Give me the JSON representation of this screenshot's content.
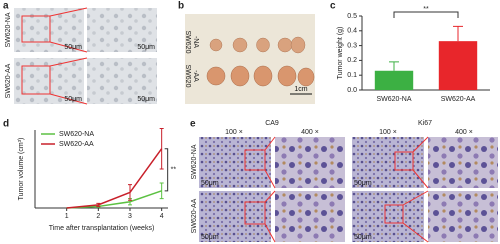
{
  "panels": {
    "a": {
      "label": "a",
      "rows": [
        "SW620-NA",
        "SW620-AA"
      ],
      "scales": [
        "50μm",
        "50μm",
        "50μm",
        "50μm"
      ]
    },
    "b": {
      "label": "b",
      "rows": [
        [
          "SW620",
          "-NA"
        ],
        [
          "SW620",
          "-AA"
        ]
      ],
      "scale": "1cm"
    },
    "c": {
      "label": "c"
    },
    "d": {
      "label": "d"
    },
    "e": {
      "label": "e",
      "columns": [
        "CA9",
        "Ki67"
      ],
      "magnifications": [
        "100 ×",
        "400 ×",
        "100 ×",
        "400 ×"
      ],
      "rows": [
        "SW620-NA",
        "SW620-AA"
      ],
      "scales": [
        "50μm",
        "50μm",
        "50μm",
        "50μm"
      ]
    }
  },
  "chart_data": [
    {
      "type": "bar",
      "categories": [
        "SW620-NA",
        "SW620-AA"
      ],
      "values": [
        0.13,
        0.33
      ],
      "errors": [
        0.06,
        0.1
      ],
      "colors": [
        "#3cb043",
        "#e8262b"
      ],
      "ylabel": "Tumor weight (g)",
      "ylim": [
        0,
        0.5
      ],
      "yticks": [
        {
          "value": 0,
          "label": "0.0"
        },
        0.1,
        0.2,
        0.3,
        0.4,
        0.5
      ],
      "annotation": "**"
    },
    {
      "type": "line",
      "x": [
        1,
        2,
        3,
        4
      ],
      "xlim": [
        0,
        4.2
      ],
      "xticks": [
        1,
        2,
        3,
        4
      ],
      "ylim": [
        0,
        0.5
      ],
      "xlabel": "Time after transplantation (weeks)",
      "ylabel": "Tumor volume (cm³)",
      "legend": "upper left",
      "series": [
        {
          "name": "SW620-NA",
          "color": "#5cc142",
          "values": [
            0,
            0.01,
            0.04,
            0.11
          ],
          "errors": [
            0,
            0.005,
            0.02,
            0.05
          ]
        },
        {
          "name": "SW620-AA",
          "color": "#c8202a",
          "values": [
            0,
            0.02,
            0.1,
            0.38
          ],
          "errors": [
            0,
            0.01,
            0.05,
            0.13
          ]
        }
      ],
      "annotation": "**"
    }
  ]
}
